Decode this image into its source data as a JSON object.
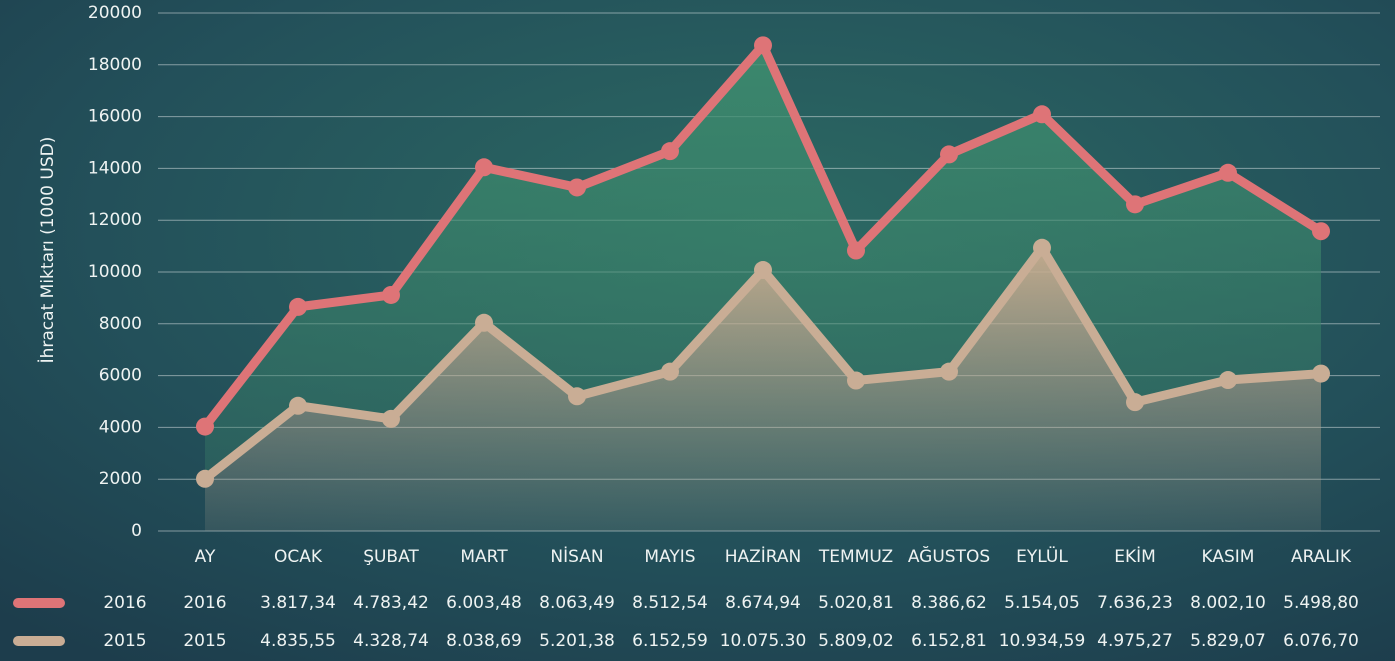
{
  "chart_data": {
    "type": "stacked-area-line",
    "y_axis_label": "İhracat Miktarı (1000 USD)",
    "categories": [
      "AY",
      "OCAK",
      "ŞUBAT",
      "MART",
      "NİSAN",
      "MAYIS",
      "HAZİRAN",
      "TEMMUZ",
      "AĞUSTOS",
      "EYLÜL",
      "EKİM",
      "KASIM",
      "ARALIK"
    ],
    "series": [
      {
        "name": "2016",
        "color": "#de7477",
        "area_color": "#3d8a6c",
        "values": [
          2016,
          3817.34,
          4783.42,
          6003.48,
          8063.49,
          8512.54,
          8674.94,
          5020.81,
          8386.62,
          5154.05,
          7636.23,
          8002.1,
          5498.8
        ],
        "value_labels": [
          "2016",
          "3.817,34",
          "4.783,42",
          "6.003,48",
          "8.063,49",
          "8.512,54",
          "8.674,94",
          "5.020,81",
          "8.386,62",
          "5.154,05",
          "7.636,23",
          "8.002,10",
          "5.498,80"
        ]
      },
      {
        "name": "2015",
        "color": "#c9ad95",
        "area_color": "#b7a288",
        "values": [
          2015,
          4835.55,
          4328.74,
          8038.69,
          5201.38,
          6152.59,
          10075.3,
          5809.02,
          6152.81,
          10934.59,
          4975.27,
          5829.07,
          6076.7
        ],
        "value_labels": [
          "2015",
          "4.835,55",
          "4.328,74",
          "8.038,69",
          "5.201,38",
          "6.152,59",
          "10.075.30",
          "5.809,02",
          "6.152,81",
          "10.934,59",
          "4.975,27",
          "5.829,07",
          "6.076,70"
        ]
      }
    ],
    "stacked": true,
    "ylim": [
      0,
      20000
    ],
    "yticks": [
      0,
      2000,
      4000,
      6000,
      8000,
      10000,
      12000,
      14000,
      16000,
      18000,
      20000
    ],
    "grid": true
  }
}
